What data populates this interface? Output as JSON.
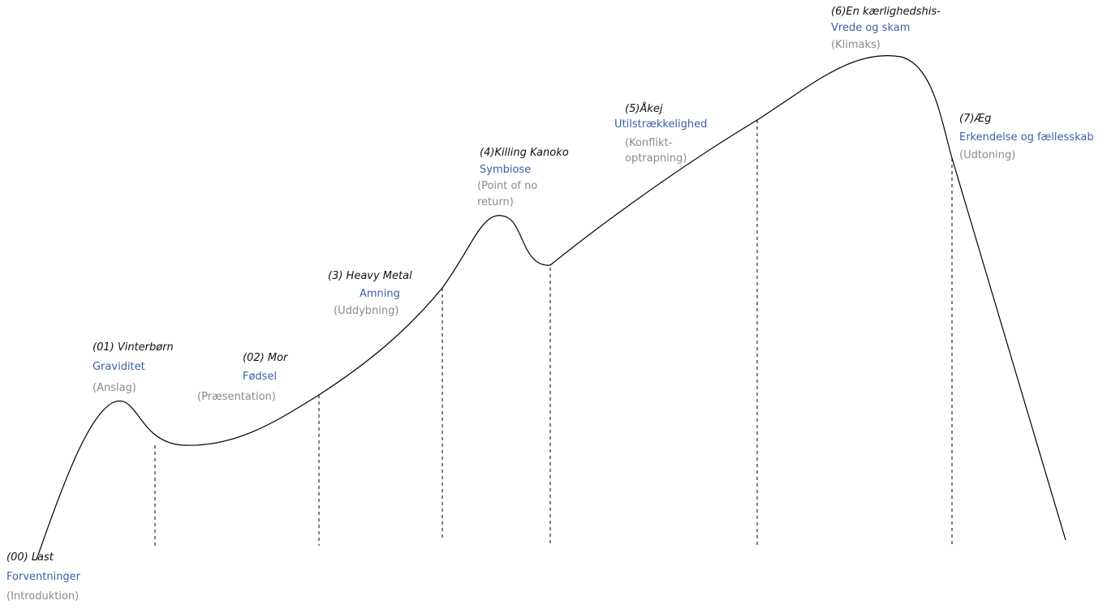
{
  "colors": {
    "curve": "#000000",
    "song": "#111111",
    "theme": "#3b5fa6",
    "phase": "#8a8a8a"
  },
  "stages": [
    {
      "song": "(00) Last",
      "theme": "Forventninger",
      "phase": [
        "(Introduktion)"
      ]
    },
    {
      "song": "(01) Vinterbørn",
      "theme": "Graviditet",
      "phase": [
        "(Anslag)"
      ]
    },
    {
      "song": "(02) Mor",
      "theme": "Fødsel",
      "phase": [
        "(Præsentation)"
      ]
    },
    {
      "song": "(3) Heavy Metal",
      "theme": "Amning",
      "phase": [
        "(Uddybning)"
      ]
    },
    {
      "song": "(4)Killing Kanoko",
      "theme": "Symbiose",
      "phase": [
        "(Point of no",
        "return)"
      ]
    },
    {
      "song": "(5)Åkej",
      "theme": "Utilstrækkelighed",
      "phase": [
        "(Konflikt-",
        "optrapning)"
      ]
    },
    {
      "song": "(6)En kærlighedshis-",
      "theme": "Vrede og skam",
      "phase": [
        "(Klimaks)"
      ]
    },
    {
      "song": "(7)Æg",
      "theme": "Erkendelse og fællesskab",
      "phase": [
        "(Udtoning)"
      ]
    }
  ]
}
